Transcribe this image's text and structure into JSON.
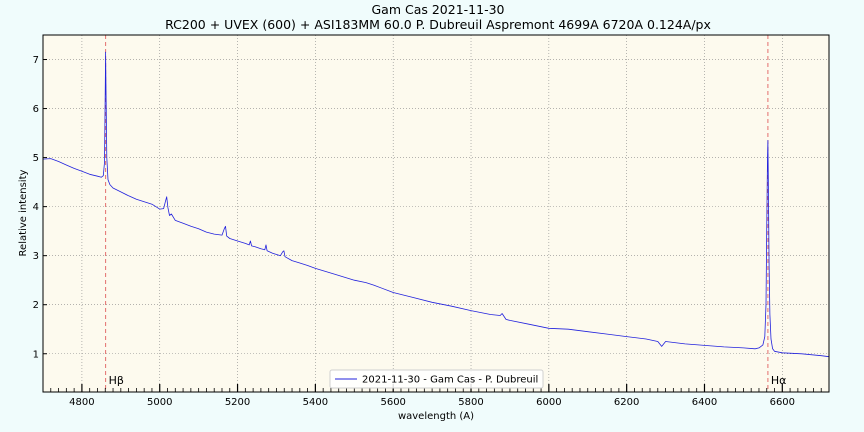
{
  "chart_data": {
    "type": "line",
    "title": "Gam Cas 2021-11-30",
    "subtitle": "RC200 + UVEX (600) + ASI183MM 60.0 P. Dubreuil Aspremont 4699A 6720A 0.124A/px",
    "xlabel": "wavelength (A)",
    "ylabel": "Relative intensity",
    "xlim": [
      4700,
      6720
    ],
    "ylim": [
      0.22,
      7.5
    ],
    "xticks": [
      4800,
      5000,
      5200,
      5400,
      5600,
      5800,
      6000,
      6200,
      6400,
      6600
    ],
    "yticks": [
      1,
      2,
      3,
      4,
      5,
      6,
      7
    ],
    "grid": true,
    "legend_position": "bottom-center",
    "colors": {
      "series": "#2222dd",
      "reference_lines": "#e06060",
      "plot_background": "#fdfaee",
      "page_background": "#f0fcfc"
    },
    "reference_lines": [
      {
        "x": 4861,
        "label": "Hβ"
      },
      {
        "x": 6563,
        "label": "Hα"
      }
    ],
    "series": [
      {
        "name": "2021-11-30 - Gam Cas - P. Dubreuil",
        "x": [
          4700,
          4720,
          4740,
          4760,
          4780,
          4800,
          4820,
          4840,
          4850,
          4855,
          4858,
          4860,
          4861,
          4862,
          4864,
          4867,
          4872,
          4880,
          4900,
          4920,
          4940,
          4960,
          4980,
          5000,
          5010,
          5015,
          5018,
          5021,
          5025,
          5030,
          5040,
          5060,
          5080,
          5100,
          5120,
          5140,
          5160,
          5166,
          5169,
          5172,
          5180,
          5200,
          5220,
          5230,
          5233,
          5236,
          5245,
          5260,
          5270,
          5273,
          5276,
          5290,
          5310,
          5316,
          5319,
          5322,
          5340,
          5360,
          5380,
          5400,
          5450,
          5500,
          5530,
          5550,
          5600,
          5650,
          5700,
          5750,
          5800,
          5850,
          5875,
          5880,
          5890,
          5900,
          5950,
          6000,
          6050,
          6100,
          6150,
          6200,
          6250,
          6280,
          6290,
          6300,
          6350,
          6400,
          6450,
          6500,
          6530,
          6540,
          6550,
          6555,
          6558,
          6560,
          6562,
          6563,
          6564,
          6566,
          6568,
          6571,
          6575,
          6580,
          6600,
          6650,
          6700,
          6720
        ],
        "y": [
          4.97,
          4.98,
          4.92,
          4.85,
          4.78,
          4.72,
          4.66,
          4.62,
          4.6,
          4.63,
          4.9,
          6.5,
          7.15,
          6.4,
          5.0,
          4.55,
          4.45,
          4.38,
          4.3,
          4.22,
          4.15,
          4.1,
          4.05,
          3.95,
          3.96,
          4.12,
          4.2,
          3.98,
          3.82,
          3.85,
          3.72,
          3.66,
          3.6,
          3.55,
          3.48,
          3.44,
          3.42,
          3.55,
          3.6,
          3.4,
          3.35,
          3.3,
          3.25,
          3.22,
          3.3,
          3.2,
          3.18,
          3.14,
          3.12,
          3.22,
          3.1,
          3.05,
          3.0,
          3.08,
          3.1,
          2.98,
          2.9,
          2.85,
          2.8,
          2.74,
          2.62,
          2.5,
          2.45,
          2.4,
          2.25,
          2.15,
          2.05,
          1.97,
          1.88,
          1.8,
          1.78,
          1.82,
          1.7,
          1.68,
          1.6,
          1.52,
          1.5,
          1.45,
          1.4,
          1.35,
          1.3,
          1.25,
          1.15,
          1.25,
          1.2,
          1.17,
          1.14,
          1.12,
          1.1,
          1.12,
          1.18,
          1.35,
          2.0,
          3.5,
          5.0,
          5.35,
          4.6,
          2.8,
          1.8,
          1.3,
          1.1,
          1.05,
          1.02,
          1.0,
          0.96,
          0.94
        ]
      }
    ]
  }
}
